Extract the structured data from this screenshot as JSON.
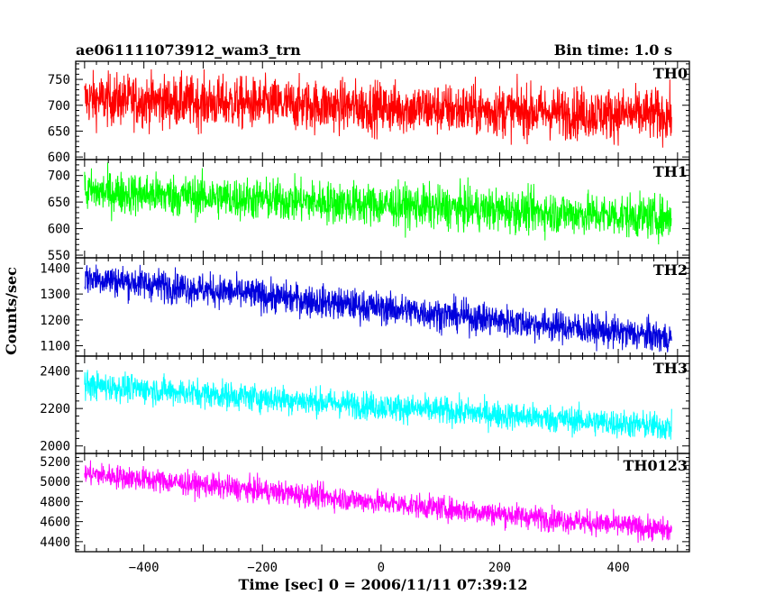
{
  "header": {
    "title": "ae061111073912_wam3_trn",
    "bin_time": "Bin time: 1.0 s"
  },
  "chart_data": {
    "type": "line",
    "xlabel": "Time [sec] 0 = 2006/11/11 07:39:12",
    "ylabel": "Counts/sec",
    "xlim": [
      -515,
      520
    ],
    "x_ticks": [
      -400,
      -200,
      0,
      200,
      400
    ],
    "x_tick_labels": [
      "−400",
      "−200",
      "0",
      "200",
      "400"
    ],
    "x_range_data": [
      -500,
      490
    ],
    "grid": false,
    "panels": [
      {
        "name": "TH0",
        "color": "#ff0000",
        "ylim": [
          595,
          785
        ],
        "y_ticks": [
          600,
          650,
          700,
          750
        ],
        "mean_start": 712,
        "mean_end": 680,
        "spread": 40,
        "sample_points": [
          [
            -500,
            700
          ],
          [
            -400,
            715
          ],
          [
            -200,
            705
          ],
          [
            0,
            700
          ],
          [
            200,
            690
          ],
          [
            400,
            680
          ],
          [
            490,
            675
          ]
        ]
      },
      {
        "name": "TH1",
        "color": "#00ff00",
        "ylim": [
          545,
          730
        ],
        "y_ticks": [
          550,
          600,
          650,
          700
        ],
        "mean_start": 670,
        "mean_end": 620,
        "spread": 32,
        "sample_points": [
          [
            -500,
            665
          ],
          [
            -400,
            670
          ],
          [
            -200,
            652
          ],
          [
            0,
            645
          ],
          [
            200,
            630
          ],
          [
            400,
            622
          ],
          [
            490,
            618
          ]
        ]
      },
      {
        "name": "TH2",
        "color": "#0000dd",
        "ylim": [
          1060,
          1440
        ],
        "y_ticks": [
          1100,
          1200,
          1300,
          1400
        ],
        "mean_start": 1365,
        "mean_end": 1130,
        "spread": 50,
        "sample_points": [
          [
            -500,
            1360
          ],
          [
            -400,
            1340
          ],
          [
            -200,
            1285
          ],
          [
            0,
            1230
          ],
          [
            200,
            1180
          ],
          [
            400,
            1140
          ],
          [
            490,
            1125
          ]
        ]
      },
      {
        "name": "TH3",
        "color": "#00ffff",
        "ylim": [
          1960,
          2480
        ],
        "y_ticks": [
          2000,
          2200,
          2400
        ],
        "mean_start": 2325,
        "mean_end": 2100,
        "spread": 60,
        "sample_points": [
          [
            -500,
            2320
          ],
          [
            -400,
            2290
          ],
          [
            -200,
            2240
          ],
          [
            0,
            2190
          ],
          [
            200,
            2150
          ],
          [
            400,
            2110
          ],
          [
            490,
            2095
          ]
        ]
      },
      {
        "name": "TH0123",
        "color": "#ff00ff",
        "ylim": [
          4300,
          5280
        ],
        "y_ticks": [
          4400,
          4600,
          4800,
          5000,
          5200
        ],
        "mean_start": 5080,
        "mean_end": 4510,
        "spread": 95,
        "sample_points": [
          [
            -500,
            5100
          ],
          [
            -400,
            5020
          ],
          [
            -200,
            4890
          ],
          [
            0,
            4770
          ],
          [
            200,
            4660
          ],
          [
            400,
            4560
          ],
          [
            490,
            4520
          ]
        ]
      }
    ]
  }
}
